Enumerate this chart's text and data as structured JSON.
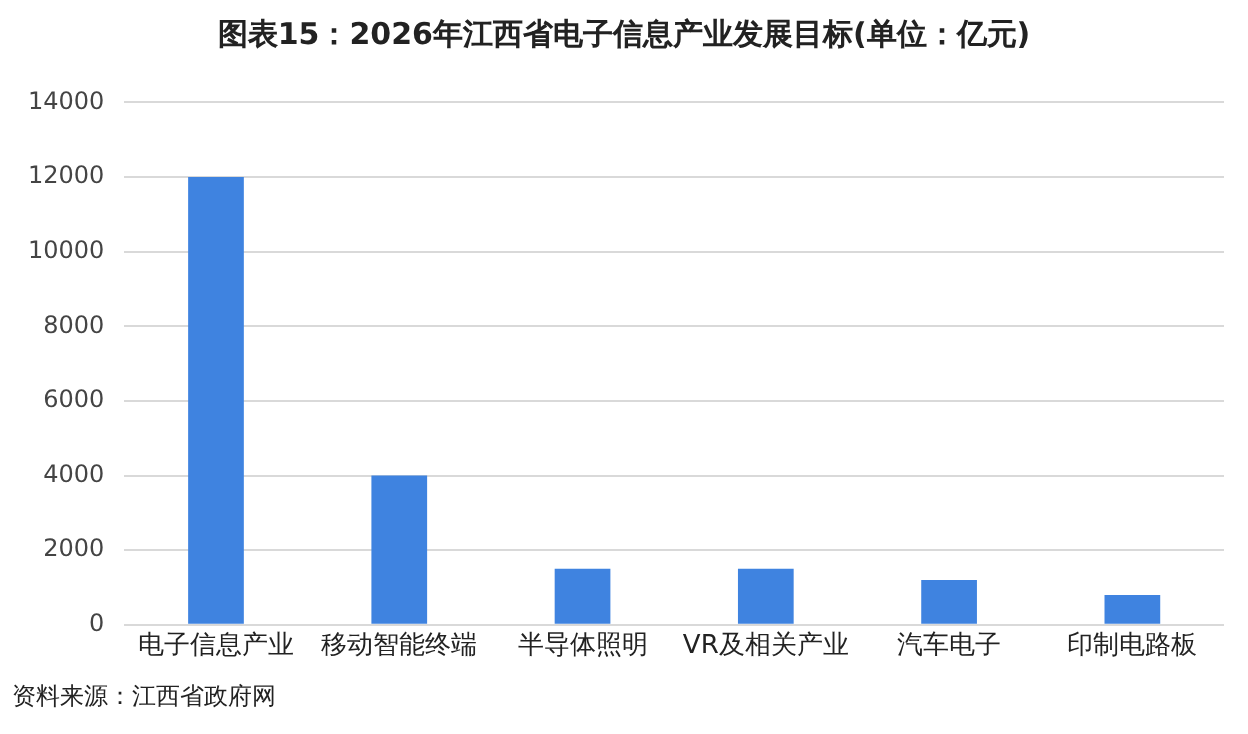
{
  "chart_data": {
    "type": "bar",
    "title": "图表15：2026年江西省电子信息产业发展目标(单位：亿元)",
    "categories": [
      "电子信息产业",
      "移动智能终端",
      "半导体照明",
      "VR及相关产业",
      "汽车电子",
      "印制电路板"
    ],
    "values": [
      12000,
      4000,
      1500,
      1500,
      1200,
      800
    ],
    "color": "#3f83e0",
    "ylim": [
      0,
      14000
    ],
    "yticks": [
      0,
      2000,
      4000,
      6000,
      8000,
      10000,
      12000,
      14000
    ],
    "grid": "y",
    "legend": false,
    "annotations": [
      "资料来源：江西省政府网"
    ]
  }
}
